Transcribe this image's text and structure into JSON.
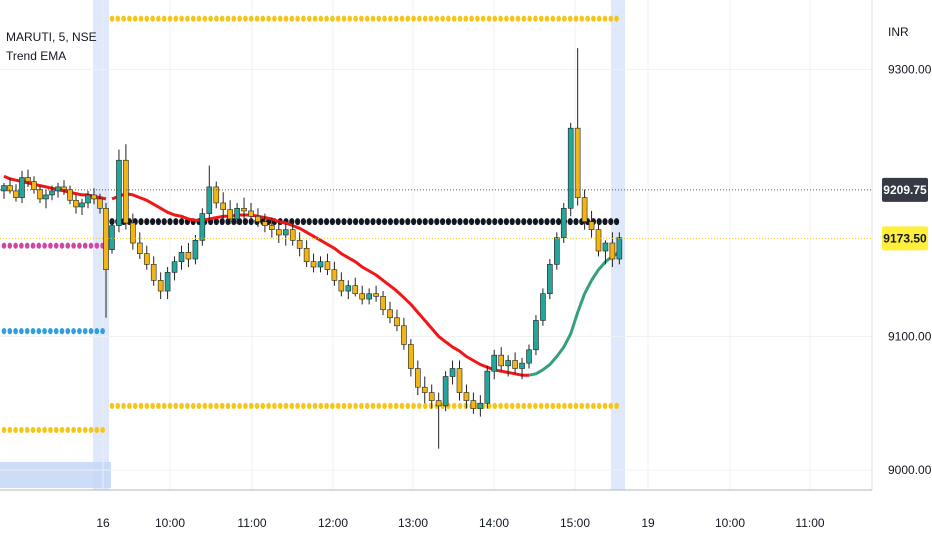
{
  "legend": {
    "symbol_line": "MARUTI, 5, NSE",
    "indicator": "Trend EMA"
  },
  "chart_data": {
    "type": "candlestick",
    "currency": "INR",
    "ylim": [
      8985,
      9352
    ],
    "y_ticks": [
      {
        "value": 9000,
        "label": "9000.00"
      },
      {
        "value": 9100,
        "label": "9100.00"
      },
      {
        "value": 9300,
        "label": "9300.00"
      }
    ],
    "x_ticks": [
      "16",
      "10:00",
      "11:00",
      "12:00",
      "13:00",
      "14:00",
      "15:00",
      "19",
      "10:00",
      "11:00"
    ],
    "price_tags": [
      {
        "value": 9209.75,
        "label": "9209.75",
        "style": "dark"
      },
      {
        "value": 9173.5,
        "label": "9173.50",
        "style": "yellow"
      }
    ],
    "colors": {
      "up": "#26a69a",
      "down": "#f2b516",
      "ema_up": "#35a07a",
      "ema_down": "#f21616",
      "level": "#f5c518",
      "pivot": "#131722",
      "magenta": "#d046a4",
      "blue": "#2f9fe0",
      "session": "#dfe9fb"
    },
    "prev_session": {
      "candles": [
        [
          9209,
          9215,
          9203,
          9213
        ],
        [
          9213,
          9219,
          9207,
          9209
        ],
        [
          9209,
          9214,
          9201,
          9204
        ],
        [
          9204,
          9224,
          9200,
          9219
        ],
        [
          9219,
          9225,
          9212,
          9216
        ],
        [
          9216,
          9220,
          9207,
          9210
        ],
        [
          9210,
          9213,
          9200,
          9203
        ],
        [
          9203,
          9210,
          9196,
          9206
        ],
        [
          9206,
          9213,
          9202,
          9209
        ],
        [
          9209,
          9215,
          9204,
          9212
        ],
        [
          9212,
          9217,
          9206,
          9210
        ],
        [
          9210,
          9213,
          9199,
          9202
        ],
        [
          9202,
          9206,
          9192,
          9197
        ],
        [
          9197,
          9203,
          9191,
          9200
        ],
        [
          9200,
          9209,
          9196,
          9206
        ],
        [
          9206,
          9211,
          9199,
          9203
        ],
        [
          9203,
          9207,
          9192,
          9196
        ],
        [
          9196,
          9200,
          9114,
          9150
        ]
      ],
      "ema": [
        9220,
        9218,
        9217,
        9216,
        9215,
        9214,
        9213,
        9212,
        9211,
        9210,
        9209,
        9208,
        9207,
        9206,
        9206,
        9205,
        9204,
        9203
      ],
      "magenta_level": 9168,
      "blue_level": 9104,
      "low_level": 9030
    },
    "today": {
      "candles": [
        [
          9165,
          9188,
          9162,
          9183
        ],
        [
          9183,
          9240,
          9178,
          9232
        ],
        [
          9232,
          9244,
          9180,
          9185
        ],
        [
          9185,
          9192,
          9165,
          9170
        ],
        [
          9170,
          9178,
          9158,
          9162
        ],
        [
          9162,
          9168,
          9150,
          9154
        ],
        [
          9154,
          9160,
          9138,
          9142
        ],
        [
          9142,
          9148,
          9128,
          9134
        ],
        [
          9134,
          9152,
          9128,
          9148
        ],
        [
          9148,
          9160,
          9142,
          9156
        ],
        [
          9156,
          9168,
          9150,
          9163
        ],
        [
          9163,
          9170,
          9152,
          9158
        ],
        [
          9158,
          9176,
          9154,
          9172
        ],
        [
          9172,
          9196,
          9168,
          9192
        ],
        [
          9192,
          9228,
          9186,
          9212
        ],
        [
          9212,
          9216,
          9196,
          9200
        ],
        [
          9200,
          9208,
          9188,
          9195
        ],
        [
          9195,
          9202,
          9184,
          9188
        ],
        [
          9188,
          9200,
          9184,
          9196
        ],
        [
          9196,
          9204,
          9188,
          9194
        ],
        [
          9194,
          9200,
          9186,
          9190
        ],
        [
          9190,
          9196,
          9182,
          9186
        ],
        [
          9186,
          9192,
          9178,
          9183
        ],
        [
          9183,
          9189,
          9174,
          9180
        ],
        [
          9180,
          9186,
          9170,
          9176
        ],
        [
          9176,
          9184,
          9168,
          9180
        ],
        [
          9180,
          9186,
          9168,
          9172
        ],
        [
          9172,
          9178,
          9160,
          9166
        ],
        [
          9166,
          9172,
          9152,
          9156
        ],
        [
          9156,
          9162,
          9148,
          9152
        ],
        [
          9152,
          9160,
          9148,
          9156
        ],
        [
          9156,
          9162,
          9146,
          9150
        ],
        [
          9150,
          9156,
          9138,
          9142
        ],
        [
          9142,
          9148,
          9130,
          9134
        ],
        [
          9134,
          9142,
          9128,
          9138
        ],
        [
          9138,
          9144,
          9130,
          9132
        ],
        [
          9132,
          9138,
          9124,
          9128
        ],
        [
          9128,
          9136,
          9124,
          9132
        ],
        [
          9132,
          9138,
          9126,
          9130
        ],
        [
          9130,
          9134,
          9116,
          9120
        ],
        [
          9120,
          9126,
          9110,
          9114
        ],
        [
          9114,
          9120,
          9104,
          9108
        ],
        [
          9108,
          9114,
          9090,
          9094
        ],
        [
          9094,
          9098,
          9070,
          9076
        ],
        [
          9076,
          9082,
          9056,
          9062
        ],
        [
          9062,
          9070,
          9050,
          9058
        ],
        [
          9058,
          9064,
          9046,
          9052
        ],
        [
          9052,
          9058,
          9016,
          9048
        ],
        [
          9048,
          9074,
          9044,
          9070
        ],
        [
          9070,
          9082,
          9064,
          9076
        ],
        [
          9076,
          9082,
          9052,
          9058
        ],
        [
          9058,
          9064,
          9046,
          9052
        ],
        [
          9052,
          9058,
          9042,
          9046
        ],
        [
          9046,
          9056,
          9040,
          9050
        ],
        [
          9050,
          9078,
          9046,
          9074
        ],
        [
          9074,
          9090,
          9068,
          9086
        ],
        [
          9086,
          9092,
          9074,
          9078
        ],
        [
          9078,
          9086,
          9070,
          9082
        ],
        [
          9082,
          9088,
          9072,
          9076
        ],
        [
          9076,
          9084,
          9068,
          9080
        ],
        [
          9080,
          9094,
          9076,
          9090
        ],
        [
          9090,
          9116,
          9086,
          9112
        ],
        [
          9112,
          9136,
          9108,
          9132
        ],
        [
          9132,
          9158,
          9128,
          9154
        ],
        [
          9154,
          9178,
          9150,
          9174
        ],
        [
          9174,
          9200,
          9170,
          9196
        ],
        [
          9196,
          9260,
          9190,
          9256
        ],
        [
          9256,
          9316,
          9198,
          9204
        ],
        [
          9204,
          9210,
          9180,
          9186
        ],
        [
          9186,
          9194,
          9174,
          9180
        ],
        [
          9180,
          9186,
          9160,
          9164
        ],
        [
          9164,
          9172,
          9154,
          9170
        ],
        [
          9170,
          9178,
          9152,
          9158
        ],
        [
          9158,
          9178,
          9154,
          9174
        ]
      ],
      "ema": [
        9203,
        9205,
        9207,
        9206,
        9204,
        9202,
        9199,
        9196,
        9193,
        9191,
        9190,
        9188,
        9187,
        9187,
        9188,
        9189,
        9190,
        9190,
        9191,
        9191,
        9191,
        9190,
        9189,
        9188,
        9186,
        9185,
        9183,
        9181,
        9178,
        9175,
        9172,
        9169,
        9166,
        9162,
        9159,
        9156,
        9152,
        9149,
        9146,
        9142,
        9138,
        9134,
        9129,
        9124,
        9118,
        9112,
        9106,
        9100,
        9096,
        9092,
        9089,
        9085,
        9082,
        9079,
        9077,
        9075,
        9074,
        9073,
        9072,
        9071,
        9071,
        9072,
        9075,
        9079,
        9085,
        9092,
        9102,
        9118,
        9132,
        9142,
        9150,
        9156,
        9160,
        9163
      ],
      "ema_color_switch": 60,
      "pivot_level": 9186,
      "upper_level": 9338,
      "lower_level": 9048
    }
  }
}
